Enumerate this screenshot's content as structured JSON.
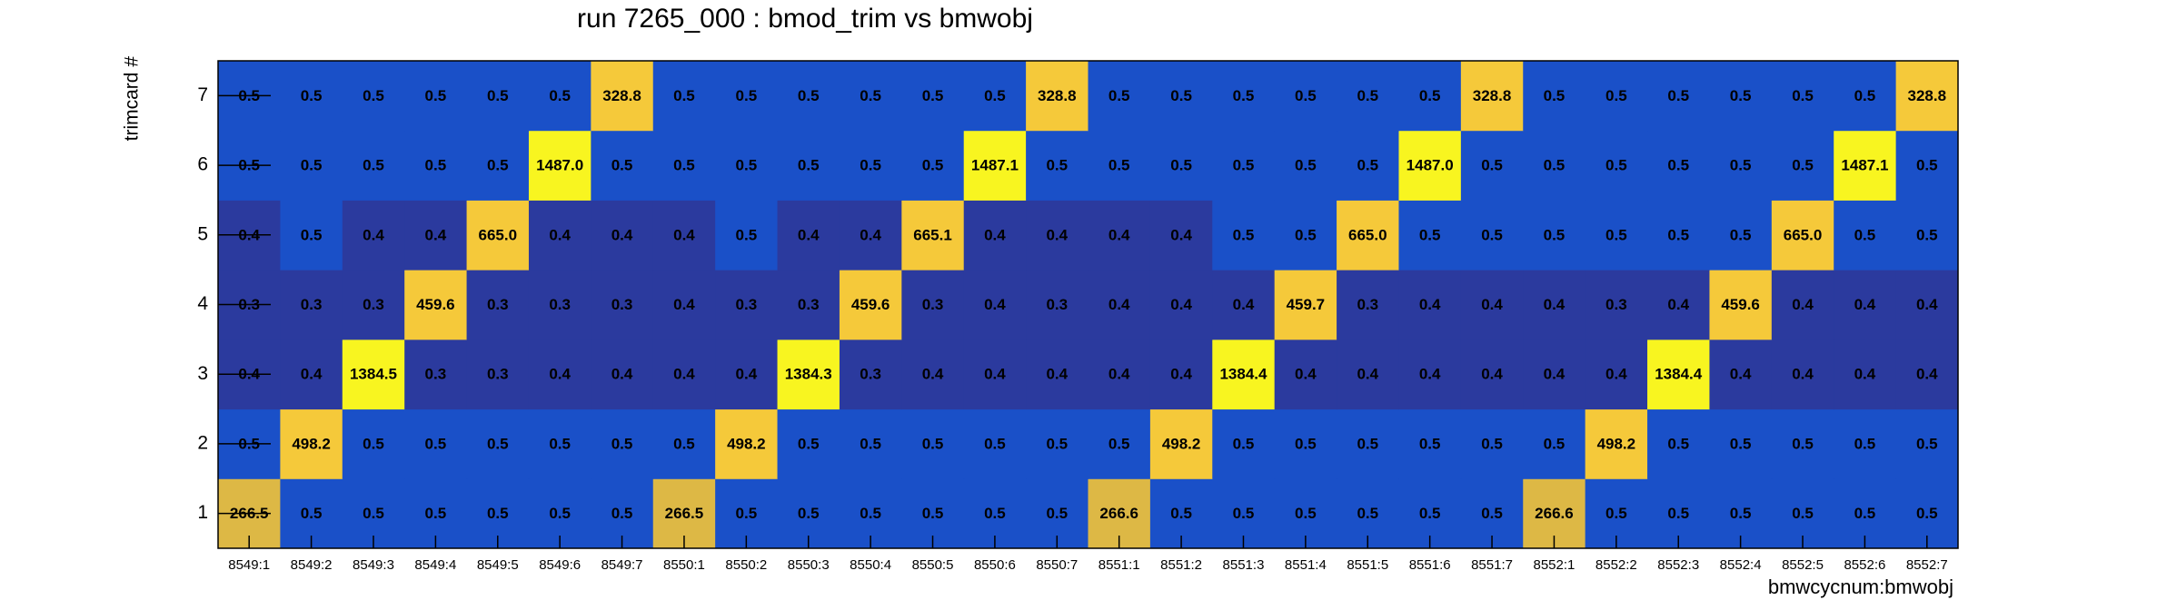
{
  "chart_data": {
    "type": "heatmap",
    "title": "run 7265_000 : bmod_trim vs bmwobj",
    "xlabel": "bmwcycnum:bmwobj",
    "ylabel": "trimcard #",
    "categories": [
      "8549:1",
      "8549:2",
      "8549:3",
      "8549:4",
      "8549:5",
      "8549:6",
      "8549:7",
      "8550:1",
      "8550:2",
      "8550:3",
      "8550:4",
      "8550:5",
      "8550:6",
      "8550:7",
      "8551:1",
      "8551:2",
      "8551:3",
      "8551:4",
      "8551:5",
      "8551:6",
      "8551:7",
      "8552:1",
      "8552:2",
      "8552:3",
      "8552:4",
      "8552:5",
      "8552:6",
      "8552:7"
    ],
    "yticks": [
      1,
      2,
      3,
      4,
      5,
      6,
      7
    ],
    "zlog": true,
    "palette": [
      "#2b3a9e",
      "#1a50c8",
      "#ddb845",
      "#f5c93a",
      "#f8f520"
    ],
    "values": [
      [
        266.5,
        0.5,
        0.5,
        0.5,
        0.5,
        0.5,
        0.5,
        266.5,
        0.5,
        0.5,
        0.5,
        0.5,
        0.5,
        0.5,
        266.6,
        0.5,
        0.5,
        0.5,
        0.5,
        0.5,
        0.5,
        266.6,
        0.5,
        0.5,
        0.5,
        0.5,
        0.5,
        0.5
      ],
      [
        0.5,
        498.2,
        0.5,
        0.5,
        0.5,
        0.5,
        0.5,
        0.5,
        498.2,
        0.5,
        0.5,
        0.5,
        0.5,
        0.5,
        0.5,
        498.2,
        0.5,
        0.5,
        0.5,
        0.5,
        0.5,
        0.5,
        498.2,
        0.5,
        0.5,
        0.5,
        0.5,
        0.5
      ],
      [
        0.4,
        0.4,
        1384.5,
        0.3,
        0.3,
        0.4,
        0.4,
        0.4,
        0.4,
        1384.3,
        0.3,
        0.4,
        0.4,
        0.4,
        0.4,
        0.4,
        1384.4,
        0.4,
        0.4,
        0.4,
        0.4,
        0.4,
        0.4,
        1384.4,
        0.4,
        0.4,
        0.4,
        0.4
      ],
      [
        0.3,
        0.3,
        0.3,
        459.6,
        0.3,
        0.3,
        0.3,
        0.4,
        0.3,
        0.3,
        459.6,
        0.3,
        0.4,
        0.3,
        0.4,
        0.4,
        0.4,
        459.7,
        0.3,
        0.4,
        0.4,
        0.4,
        0.3,
        0.4,
        459.6,
        0.4,
        0.4,
        0.4
      ],
      [
        0.4,
        0.5,
        0.4,
        0.4,
        665.0,
        0.4,
        0.4,
        0.4,
        0.5,
        0.4,
        0.4,
        665.1,
        0.4,
        0.4,
        0.4,
        0.4,
        0.5,
        0.5,
        665.0,
        0.5,
        0.5,
        0.5,
        0.5,
        0.5,
        0.5,
        665.0,
        0.5,
        0.5
      ],
      [
        0.5,
        0.5,
        0.5,
        0.5,
        0.5,
        1487.0,
        0.5,
        0.5,
        0.5,
        0.5,
        0.5,
        0.5,
        1487.1,
        0.5,
        0.5,
        0.5,
        0.5,
        0.5,
        0.5,
        1487.0,
        0.5,
        0.5,
        0.5,
        0.5,
        0.5,
        0.5,
        1487.1,
        0.5
      ],
      [
        0.5,
        0.5,
        0.5,
        0.5,
        0.5,
        0.5,
        328.8,
        0.5,
        0.5,
        0.5,
        0.5,
        0.5,
        0.5,
        328.8,
        0.5,
        0.5,
        0.5,
        0.5,
        0.5,
        0.5,
        328.8,
        0.5,
        0.5,
        0.5,
        0.5,
        0.5,
        0.5,
        328.8
      ]
    ],
    "value_labels": [
      [
        "266.5",
        "0.5",
        "0.5",
        "0.5",
        "0.5",
        "0.5",
        "0.5",
        "266.5",
        "0.5",
        "0.5",
        "0.5",
        "0.5",
        "0.5",
        "0.5",
        "266.6",
        "0.5",
        "0.5",
        "0.5",
        "0.5",
        "0.5",
        "0.5",
        "266.6",
        "0.5",
        "0.5",
        "0.5",
        "0.5",
        "0.5",
        "0.5"
      ],
      [
        "0.5",
        "498.2",
        "0.5",
        "0.5",
        "0.5",
        "0.5",
        "0.5",
        "0.5",
        "498.2",
        "0.5",
        "0.5",
        "0.5",
        "0.5",
        "0.5",
        "0.5",
        "498.2",
        "0.5",
        "0.5",
        "0.5",
        "0.5",
        "0.5",
        "0.5",
        "498.2",
        "0.5",
        "0.5",
        "0.5",
        "0.5",
        "0.5"
      ],
      [
        "0.4",
        "0.4",
        "1384.5",
        "0.3",
        "0.3",
        "0.4",
        "0.4",
        "0.4",
        "0.4",
        "1384.3",
        "0.3",
        "0.4",
        "0.4",
        "0.4",
        "0.4",
        "0.4",
        "1384.4",
        "0.4",
        "0.4",
        "0.4",
        "0.4",
        "0.4",
        "0.4",
        "1384.4",
        "0.4",
        "0.4",
        "0.4",
        "0.4"
      ],
      [
        "0.3",
        "0.3",
        "0.3",
        "459.6",
        "0.3",
        "0.3",
        "0.3",
        "0.4",
        "0.3",
        "0.3",
        "459.6",
        "0.3",
        "0.4",
        "0.3",
        "0.4",
        "0.4",
        "0.4",
        "459.7",
        "0.3",
        "0.4",
        "0.4",
        "0.4",
        "0.3",
        "0.4",
        "459.6",
        "0.4",
        "0.4",
        "0.4"
      ],
      [
        "0.4",
        "0.5",
        "0.4",
        "0.4",
        "665.0",
        "0.4",
        "0.4",
        "0.4",
        "0.5",
        "0.4",
        "0.4",
        "665.1",
        "0.4",
        "0.4",
        "0.4",
        "0.4",
        "0.5",
        "0.5",
        "665.0",
        "0.5",
        "0.5",
        "0.5",
        "0.5",
        "0.5",
        "0.5",
        "665.0",
        "0.5",
        "0.5"
      ],
      [
        "0.5",
        "0.5",
        "0.5",
        "0.5",
        "0.5",
        "1487.0",
        "0.5",
        "0.5",
        "0.5",
        "0.5",
        "0.5",
        "0.5",
        "1487.1",
        "0.5",
        "0.5",
        "0.5",
        "0.5",
        "0.5",
        "0.5",
        "1487.0",
        "0.5",
        "0.5",
        "0.5",
        "0.5",
        "0.5",
        "0.5",
        "1487.1",
        "0.5"
      ],
      [
        "0.5",
        "0.5",
        "0.5",
        "0.5",
        "0.5",
        "0.5",
        "328.8",
        "0.5",
        "0.5",
        "0.5",
        "0.5",
        "0.5",
        "0.5",
        "328.8",
        "0.5",
        "0.5",
        "0.5",
        "0.5",
        "0.5",
        "0.5",
        "328.8",
        "0.5",
        "0.5",
        "0.5",
        "0.5",
        "0.5",
        "0.5",
        "328.8"
      ]
    ]
  }
}
